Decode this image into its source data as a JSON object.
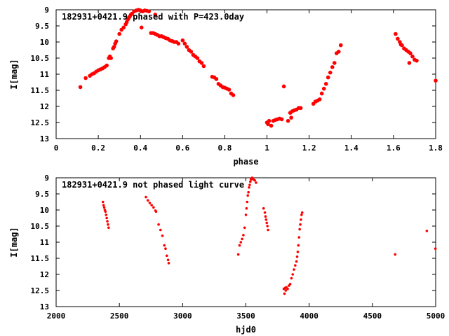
{
  "chart_data": [
    {
      "type": "scatter",
      "title": "182931+0421.9 phased with P=423.0day",
      "xlabel": "phase",
      "ylabel": "I[mag]",
      "xlim": [
        0,
        1.8
      ],
      "ylim": [
        13,
        9
      ],
      "y_inverted": true,
      "grid": false,
      "point_color": "#ff0000",
      "xticks": [
        0,
        0.2,
        0.4,
        0.6,
        0.8,
        1,
        1.2,
        1.4,
        1.6,
        1.8
      ],
      "xtick_labels": [
        "0",
        "0.2",
        "0.4",
        "0.6",
        "0.8",
        "1",
        "1.2",
        "1.4",
        "1.6",
        "1.8"
      ],
      "yticks": [
        9,
        9.5,
        10,
        10.5,
        11,
        11.5,
        12,
        12.5,
        13
      ],
      "ytick_labels": [
        "9",
        "9.5",
        "10",
        "10.5",
        "11",
        "11.5",
        "12",
        "12.5",
        "13"
      ],
      "series": [
        {
          "points": [
            [
              0.115,
              11.4
            ],
            [
              0.14,
              11.12
            ],
            [
              0.16,
              11.05
            ],
            [
              0.17,
              11.0
            ],
            [
              0.18,
              10.97
            ],
            [
              0.19,
              10.92
            ],
            [
              0.2,
              10.88
            ],
            [
              0.21,
              10.85
            ],
            [
              0.22,
              10.82
            ],
            [
              0.23,
              10.78
            ],
            [
              0.24,
              10.73
            ],
            [
              0.25,
              10.5
            ],
            [
              0.255,
              10.45
            ],
            [
              0.26,
              10.5
            ],
            [
              0.27,
              10.2
            ],
            [
              0.275,
              10.15
            ],
            [
              0.28,
              10.05
            ],
            [
              0.285,
              9.98
            ],
            [
              0.3,
              9.75
            ],
            [
              0.31,
              9.62
            ],
            [
              0.32,
              9.55
            ],
            [
              0.33,
              9.45
            ],
            [
              0.335,
              9.38
            ],
            [
              0.34,
              9.3
            ],
            [
              0.345,
              9.25
            ],
            [
              0.35,
              9.2
            ],
            [
              0.355,
              9.15
            ],
            [
              0.36,
              9.12
            ],
            [
              0.37,
              9.05
            ],
            [
              0.38,
              9.02
            ],
            [
              0.39,
              9.0
            ],
            [
              0.4,
              9.02
            ],
            [
              0.405,
              9.55
            ],
            [
              0.41,
              9.05
            ],
            [
              0.42,
              9.02
            ],
            [
              0.43,
              9.03
            ],
            [
              0.44,
              9.05
            ],
            [
              0.45,
              9.72
            ],
            [
              0.46,
              9.72
            ],
            [
              0.47,
              9.75
            ],
            [
              0.47,
              9.15
            ],
            [
              0.48,
              9.78
            ],
            [
              0.49,
              9.82
            ],
            [
              0.5,
              9.82
            ],
            [
              0.51,
              9.85
            ],
            [
              0.52,
              9.88
            ],
            [
              0.53,
              9.9
            ],
            [
              0.54,
              9.95
            ],
            [
              0.55,
              9.97
            ],
            [
              0.56,
              10.0
            ],
            [
              0.57,
              10.0
            ],
            [
              0.58,
              10.05
            ],
            [
              0.6,
              9.95
            ],
            [
              0.61,
              10.05
            ],
            [
              0.62,
              10.15
            ],
            [
              0.63,
              10.25
            ],
            [
              0.64,
              10.3
            ],
            [
              0.65,
              10.4
            ],
            [
              0.66,
              10.45
            ],
            [
              0.67,
              10.5
            ],
            [
              0.68,
              10.6
            ],
            [
              0.69,
              10.65
            ],
            [
              0.7,
              10.75
            ],
            [
              0.74,
              11.08
            ],
            [
              0.75,
              11.1
            ],
            [
              0.76,
              11.15
            ],
            [
              0.77,
              11.3
            ],
            [
              0.78,
              11.35
            ],
            [
              0.79,
              11.4
            ],
            [
              0.8,
              11.42
            ],
            [
              0.81,
              11.45
            ],
            [
              0.82,
              11.48
            ],
            [
              0.83,
              11.6
            ],
            [
              0.84,
              11.65
            ],
            [
              1.0,
              12.5
            ],
            [
              1.005,
              12.55
            ],
            [
              1.01,
              12.45
            ],
            [
              1.02,
              12.6
            ],
            [
              1.03,
              12.45
            ],
            [
              1.04,
              12.42
            ],
            [
              1.05,
              12.4
            ],
            [
              1.06,
              12.38
            ],
            [
              1.07,
              12.4
            ],
            [
              1.08,
              11.38
            ],
            [
              1.1,
              12.45
            ],
            [
              1.11,
              12.2
            ],
            [
              1.115,
              12.35
            ],
            [
              1.12,
              12.15
            ],
            [
              1.13,
              12.12
            ],
            [
              1.14,
              12.1
            ],
            [
              1.15,
              12.05
            ],
            [
              1.16,
              12.05
            ],
            [
              1.22,
              11.92
            ],
            [
              1.23,
              11.85
            ],
            [
              1.24,
              11.82
            ],
            [
              1.25,
              11.78
            ],
            [
              1.26,
              11.6
            ],
            [
              1.27,
              11.45
            ],
            [
              1.28,
              11.3
            ],
            [
              1.29,
              11.1
            ],
            [
              1.3,
              10.95
            ],
            [
              1.31,
              10.78
            ],
            [
              1.32,
              10.65
            ],
            [
              1.33,
              10.35
            ],
            [
              1.34,
              10.3
            ],
            [
              1.35,
              10.1
            ],
            [
              1.61,
              9.75
            ],
            [
              1.62,
              9.9
            ],
            [
              1.63,
              10.0
            ],
            [
              1.635,
              10.08
            ],
            [
              1.64,
              10.1
            ],
            [
              1.65,
              10.2
            ],
            [
              1.66,
              10.25
            ],
            [
              1.67,
              10.3
            ],
            [
              1.675,
              10.65
            ],
            [
              1.68,
              10.35
            ],
            [
              1.69,
              10.45
            ],
            [
              1.7,
              10.55
            ],
            [
              1.71,
              10.58
            ],
            [
              1.8,
              11.2
            ]
          ]
        }
      ]
    },
    {
      "type": "scatter",
      "title": "182931+0421.9 not phased light curve",
      "xlabel": "hjd0",
      "ylabel": "I[mag]",
      "xlim": [
        2000,
        5000
      ],
      "ylim": [
        13,
        9
      ],
      "y_inverted": true,
      "grid": false,
      "point_color": "#ff0000",
      "xticks": [
        2000,
        2500,
        3000,
        3500,
        4000,
        4500,
        5000
      ],
      "xtick_labels": [
        "2000",
        "2500",
        "3000",
        "3500",
        "4000",
        "4500",
        "5000"
      ],
      "yticks": [
        9,
        9.5,
        10,
        10.5,
        11,
        11.5,
        12,
        12.5,
        13
      ],
      "ytick_labels": [
        "9",
        "9.5",
        "10",
        "10.5",
        "11",
        "11.5",
        "12",
        "12.5",
        "13"
      ],
      "series": [
        {
          "points": [
            [
              2370,
              9.75
            ],
            [
              2375,
              9.85
            ],
            [
              2380,
              9.92
            ],
            [
              2385,
              10.0
            ],
            [
              2390,
              10.05
            ],
            [
              2395,
              10.15
            ],
            [
              2400,
              10.25
            ],
            [
              2405,
              10.35
            ],
            [
              2410,
              10.45
            ],
            [
              2415,
              10.55
            ],
            [
              2710,
              9.6
            ],
            [
              2725,
              9.7
            ],
            [
              2740,
              9.78
            ],
            [
              2755,
              9.85
            ],
            [
              2770,
              9.92
            ],
            [
              2785,
              10.02
            ],
            [
              2790,
              10.05
            ],
            [
              2810,
              10.45
            ],
            [
              2825,
              10.62
            ],
            [
              2840,
              10.8
            ],
            [
              2855,
              11.1
            ],
            [
              2865,
              11.2
            ],
            [
              2875,
              11.42
            ],
            [
              2885,
              11.55
            ],
            [
              2890,
              11.65
            ],
            [
              3440,
              11.38
            ],
            [
              3450,
              11.1
            ],
            [
              3460,
              11.0
            ],
            [
              3470,
              10.9
            ],
            [
              3480,
              10.78
            ],
            [
              3490,
              10.55
            ],
            [
              3500,
              10.15
            ],
            [
              3505,
              9.95
            ],
            [
              3510,
              9.75
            ],
            [
              3515,
              9.55
            ],
            [
              3520,
              9.45
            ],
            [
              3525,
              9.3
            ],
            [
              3530,
              9.22
            ],
            [
              3535,
              9.12
            ],
            [
              3540,
              9.05
            ],
            [
              3545,
              9.02
            ],
            [
              3550,
              9.0
            ],
            [
              3555,
              9.02
            ],
            [
              3560,
              9.05
            ],
            [
              3570,
              9.08
            ],
            [
              3580,
              9.15
            ],
            [
              3640,
              9.95
            ],
            [
              3650,
              10.08
            ],
            [
              3655,
              10.2
            ],
            [
              3660,
              10.3
            ],
            [
              3665,
              10.4
            ],
            [
              3670,
              10.5
            ],
            [
              3675,
              10.62
            ],
            [
              3800,
              12.45
            ],
            [
              3805,
              12.6
            ],
            [
              3810,
              12.42
            ],
            [
              3815,
              12.5
            ],
            [
              3820,
              12.4
            ],
            [
              3830,
              12.45
            ],
            [
              3840,
              12.35
            ],
            [
              3850,
              12.3
            ],
            [
              3860,
              12.12
            ],
            [
              3870,
              12.0
            ],
            [
              3880,
              11.85
            ],
            [
              3890,
              11.72
            ],
            [
              3900,
              11.6
            ],
            [
              3905,
              11.45
            ],
            [
              3910,
              11.3
            ],
            [
              3915,
              11.1
            ],
            [
              3920,
              10.85
            ],
            [
              3925,
              10.6
            ],
            [
              3930,
              10.45
            ],
            [
              3935,
              10.3
            ],
            [
              3940,
              10.15
            ],
            [
              3945,
              10.08
            ],
            [
              4680,
              11.38
            ],
            [
              4930,
              10.65
            ],
            [
              4998,
              11.2
            ]
          ]
        }
      ]
    }
  ]
}
